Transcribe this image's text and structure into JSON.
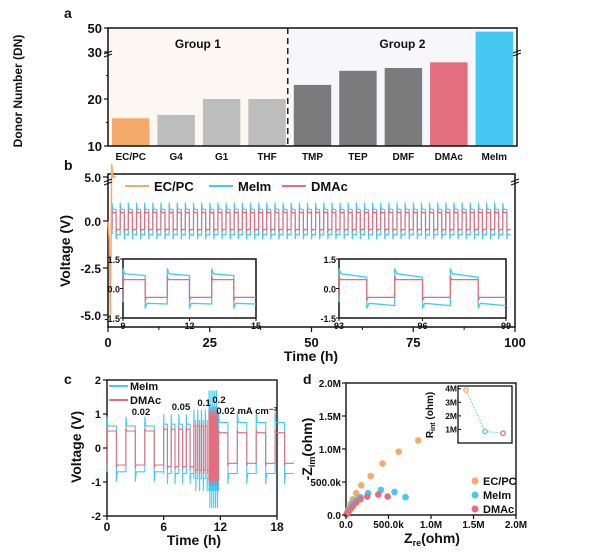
{
  "colors": {
    "ecpc": "#f4aa6a",
    "meim": "#45c8f2",
    "dmac": "#e36e7e",
    "gray_light": "#bdbdbd",
    "gray_dark": "#7b7b7b",
    "group1_bg": "#fdf7f2",
    "group2_bg": "#f7f7fb"
  },
  "chart_data": [
    {
      "panel": "a",
      "type": "bar",
      "title": "",
      "xlabel": "",
      "ylabel": "Donor Number (DN)",
      "ylim": [
        10,
        50
      ],
      "yticks": [
        "10",
        "20",
        "30",
        "50"
      ],
      "axis_break": "between 30 and 50",
      "groups": [
        {
          "label": "Group 1",
          "range": [
            0,
            3
          ]
        },
        {
          "label": "Group 2",
          "range": [
            4,
            8
          ]
        }
      ],
      "categories": [
        "EC/PC",
        "G4",
        "G1",
        "THF",
        "TMP",
        "TEP",
        "DMF",
        "DMAc",
        "MeIm"
      ],
      "values": [
        15.9,
        16.6,
        20,
        20,
        23,
        26,
        26.6,
        27.8,
        47
      ],
      "bar_colors": [
        "ecpc",
        "gray_light",
        "gray_light",
        "gray_light",
        "gray_dark",
        "gray_dark",
        "gray_dark",
        "dmac",
        "meim"
      ]
    },
    {
      "panel": "b",
      "type": "line",
      "xlabel": "Time (h)",
      "ylabel": "Voltage (V)",
      "xlim": [
        0,
        100
      ],
      "ylim": [
        -6,
        5
      ],
      "xticks": [
        "0",
        "25",
        "50",
        "75",
        "100"
      ],
      "yticks": [
        "5.0",
        "0.0",
        "-2.5",
        "-5.0"
      ],
      "legend": [
        "EC/PC",
        "MeIm",
        "DMAc"
      ],
      "legend_position": "top",
      "series": [
        {
          "name": "EC/PC",
          "description": "fails immediately, spikes to 5.0 V and -5.0 V within first ~1.5 h"
        },
        {
          "name": "MeIm",
          "charge_plateau": 0.65,
          "discharge_plateau": -0.7,
          "spike": 0.95,
          "period_h": 2
        },
        {
          "name": "DMAc",
          "charge_plateau": 0.45,
          "discharge_plateau": -0.45,
          "spike": 0.6,
          "period_h": 2
        }
      ],
      "insets": [
        {
          "xlim": [
            9,
            15
          ],
          "ylim": [
            -1.5,
            1.5
          ],
          "xticks": [
            "9",
            "12",
            "15"
          ],
          "yticks": [
            "1.5",
            "0.0",
            "-1.5"
          ]
        },
        {
          "xlim": [
            93,
            99
          ],
          "ylim": [
            -1.5,
            1.5
          ],
          "xticks": [
            "93",
            "96",
            "99"
          ],
          "yticks": [
            "1.5",
            "0.0",
            "-1.5"
          ]
        }
      ]
    },
    {
      "panel": "c",
      "type": "line",
      "xlabel": "Time (h)",
      "ylabel": "Voltage (V)",
      "xlim": [
        0,
        18
      ],
      "ylim": [
        -2,
        2
      ],
      "xticks": [
        "0",
        "6",
        "12",
        "18"
      ],
      "yticks": [
        "2",
        "1",
        "0",
        "-1",
        "-2"
      ],
      "legend": [
        "MeIm",
        "DMAc"
      ],
      "legend_position": "top-left",
      "annotations": [
        "0.02",
        "0.05",
        "0.1",
        "0.2",
        "0.02 mA cm⁻²"
      ],
      "rate_segments": [
        {
          "rate": 0.02,
          "t": [
            0,
            6
          ],
          "meim": [
            0.65,
            -0.7
          ],
          "dmac": [
            0.5,
            -0.5
          ]
        },
        {
          "rate": 0.05,
          "t": [
            6,
            9.2
          ],
          "meim": [
            0.7,
            -0.75
          ],
          "dmac": [
            0.55,
            -0.55
          ]
        },
        {
          "rate": 0.1,
          "t": [
            9.2,
            10.8
          ],
          "meim": [
            0.8,
            -0.9
          ],
          "dmac": [
            0.65,
            -0.65
          ]
        },
        {
          "rate": 0.2,
          "t": [
            10.8,
            11.8
          ],
          "meim": [
            1.2,
            -1.25
          ],
          "dmac": [
            0.95,
            -0.95
          ]
        },
        {
          "rate": 0.02,
          "t": [
            11.8,
            18
          ],
          "meim": [
            0.75,
            -0.75
          ],
          "dmac": [
            0.45,
            -0.45
          ]
        }
      ]
    },
    {
      "panel": "d",
      "type": "scatter",
      "xlabel": "Zre(ohm)",
      "ylabel": "-Zim(ohm)",
      "xlim": [
        0,
        2000000
      ],
      "ylim": [
        0,
        2000000
      ],
      "xticks": [
        "0.0",
        "500.0k",
        "1.0M",
        "1.5M",
        "2.0M"
      ],
      "yticks": [
        "0.0",
        "500.0k",
        "1.0M",
        "1.5M",
        "2.0M"
      ],
      "legend": [
        "EC/PC",
        "MeIm",
        "DMAc"
      ],
      "legend_position": "bottom-right",
      "series": [
        {
          "name": "EC/PC",
          "points": [
            [
              10000,
              20000
            ],
            [
              20000,
              50000
            ],
            [
              35000,
              100000
            ],
            [
              55000,
              170000
            ],
            [
              80000,
              240000
            ],
            [
              120000,
              330000
            ],
            [
              180000,
              450000
            ],
            [
              290000,
              590000
            ],
            [
              430000,
              780000
            ],
            [
              620000,
              960000
            ],
            [
              850000,
              1130000
            ]
          ]
        },
        {
          "name": "MeIm",
          "points": [
            [
              10000,
              15000
            ],
            [
              20000,
              40000
            ],
            [
              35000,
              80000
            ],
            [
              55000,
              130000
            ],
            [
              80000,
              180000
            ],
            [
              120000,
              230000
            ],
            [
              170000,
              270000
            ],
            [
              260000,
              330000
            ],
            [
              410000,
              380000
            ],
            [
              570000,
              350000
            ],
            [
              700000,
              270000
            ]
          ]
        },
        {
          "name": "DMAc",
          "points": [
            [
              8000,
              10000
            ],
            [
              15000,
              25000
            ],
            [
              25000,
              45000
            ],
            [
              40000,
              70000
            ],
            [
              60000,
              100000
            ],
            [
              85000,
              140000
            ],
            [
              120000,
              190000
            ],
            [
              170000,
              240000
            ],
            [
              250000,
              280000
            ],
            [
              380000,
              310000
            ],
            [
              490000,
              280000
            ]
          ]
        }
      ],
      "inset": {
        "ylabel": "Rint (ohm)",
        "yticks": [
          "1M",
          "2M",
          "3M",
          "4M"
        ],
        "ylim": [
          0,
          4200000
        ],
        "points": [
          {
            "name": "EC/PC",
            "value": 3900000
          },
          {
            "name": "MeIm",
            "value": 850000
          },
          {
            "name": "DMAc",
            "value": 720000
          }
        ]
      }
    }
  ],
  "panel_labels": [
    "a",
    "b",
    "c",
    "d"
  ]
}
